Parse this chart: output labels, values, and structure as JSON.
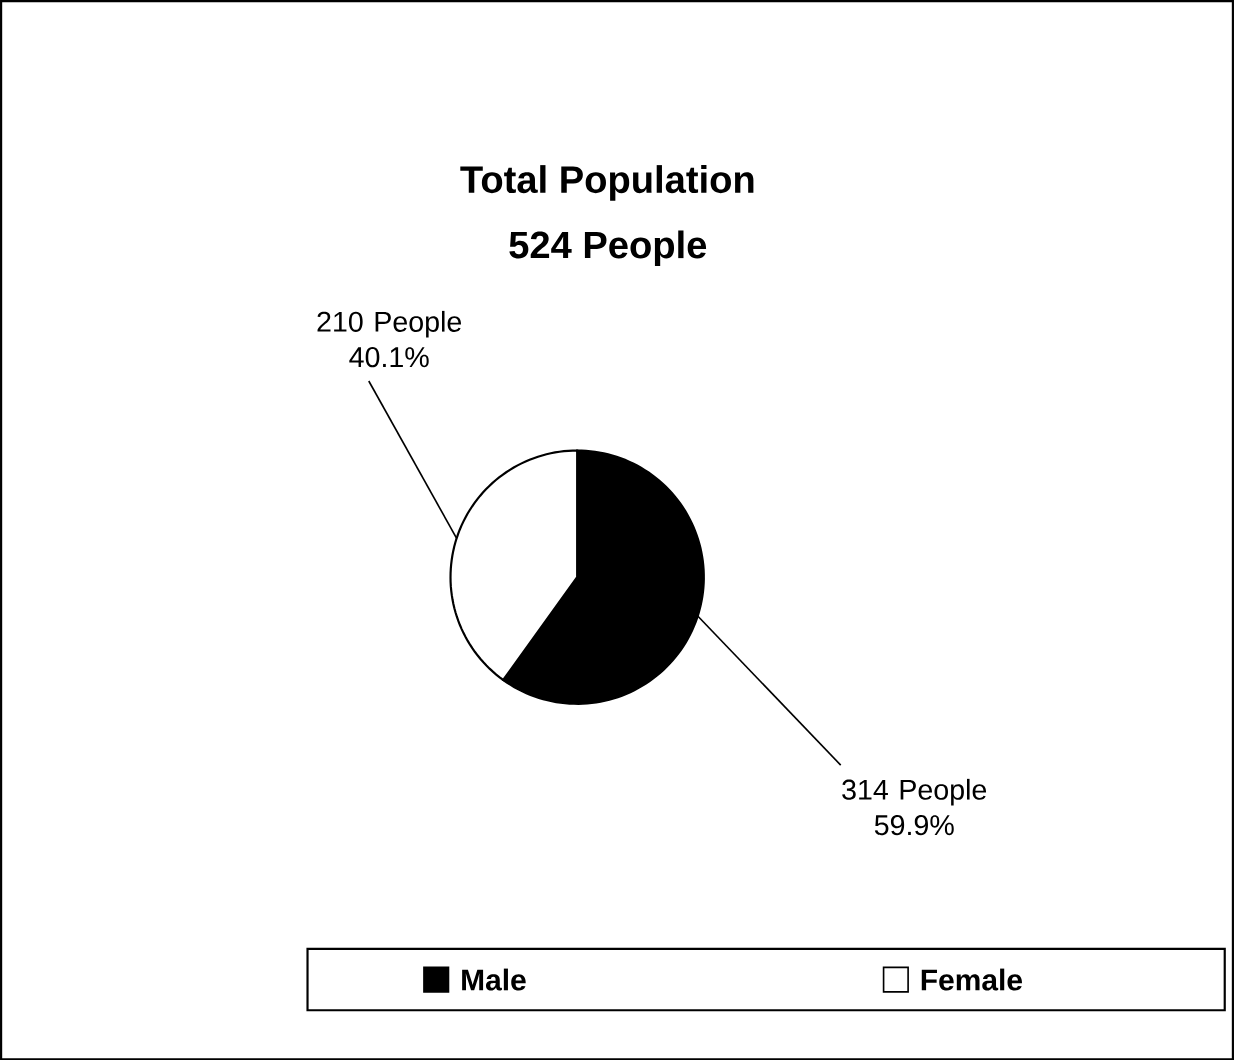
{
  "chart_data": {
    "type": "pie",
    "title": "Total Population",
    "subtitle": "524 People",
    "categories": [
      "Male",
      "Female"
    ],
    "values": [
      314,
      210
    ],
    "colors": [
      "#000000",
      "#ffffff"
    ],
    "value_labels": [
      "314 People 59.9%",
      "210 People 40.1%"
    ],
    "legend": "bottom"
  }
}
